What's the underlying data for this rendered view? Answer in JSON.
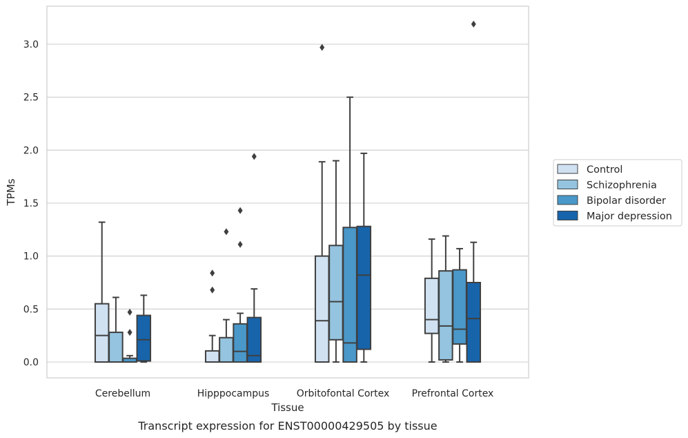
{
  "chart_data": {
    "type": "box",
    "title": "",
    "caption": "Transcript expression for ENST00000429505 by tissue",
    "xlabel": "Tissue",
    "ylabel": "TPMs",
    "ylim": [
      -0.15,
      3.38
    ],
    "yticks": [
      0.0,
      0.5,
      1.0,
      1.5,
      2.0,
      2.5,
      3.0
    ],
    "ytick_labels": [
      "0.0",
      "0.5",
      "1.0",
      "1.5",
      "2.0",
      "2.5",
      "3.0"
    ],
    "grid": "horizontal",
    "legend_position": "right",
    "categories": [
      "Cerebellum",
      "Hipppocampus",
      "Orbitofontal Cortex",
      "Prefrontal Cortex"
    ],
    "series": [
      {
        "name": "Control",
        "color": "#d0e1f2",
        "boxes": [
          {
            "whislo": 0.0,
            "q1": 0.0,
            "med": 0.25,
            "q3": 0.55,
            "whishi": 1.32,
            "fliers": []
          },
          {
            "whislo": 0.0,
            "q1": 0.0,
            "med": 0.0,
            "q3": 0.105,
            "whishi": 0.25,
            "fliers": [
              0.68,
              0.84
            ]
          },
          {
            "whislo": 0.0,
            "q1": 0.0,
            "med": 0.39,
            "q3": 1.0,
            "whishi": 1.89,
            "fliers": [
              2.97
            ]
          },
          {
            "whislo": 0.0,
            "q1": 0.27,
            "med": 0.4,
            "q3": 0.79,
            "whishi": 1.16,
            "fliers": []
          }
        ]
      },
      {
        "name": "Schizophrenia",
        "color": "#94c4df",
        "boxes": [
          {
            "whislo": 0.0,
            "q1": 0.0,
            "med": 0.0,
            "q3": 0.28,
            "whishi": 0.61,
            "fliers": []
          },
          {
            "whislo": 0.0,
            "q1": 0.0,
            "med": 0.0,
            "q3": 0.23,
            "whishi": 0.4,
            "fliers": [
              1.23
            ]
          },
          {
            "whislo": 0.0,
            "q1": 0.21,
            "med": 0.57,
            "q3": 1.1,
            "whishi": 1.9,
            "fliers": []
          },
          {
            "whislo": 0.0,
            "q1": 0.02,
            "med": 0.34,
            "q3": 0.86,
            "whishi": 1.19,
            "fliers": []
          }
        ]
      },
      {
        "name": "Bipolar disorder",
        "color": "#4a98c9",
        "boxes": [
          {
            "whislo": 0.0,
            "q1": 0.0,
            "med": 0.0,
            "q3": 0.035,
            "whishi": 0.06,
            "fliers": [
              0.28,
              0.47
            ]
          },
          {
            "whislo": 0.0,
            "q1": 0.0,
            "med": 0.1,
            "q3": 0.36,
            "whishi": 0.46,
            "fliers": [
              1.11,
              1.43
            ]
          },
          {
            "whislo": 0.0,
            "q1": 0.0,
            "med": 0.18,
            "q3": 1.27,
            "whishi": 2.5,
            "fliers": []
          },
          {
            "whislo": 0.0,
            "q1": 0.17,
            "med": 0.31,
            "q3": 0.87,
            "whishi": 1.07,
            "fliers": []
          }
        ]
      },
      {
        "name": "Major depression",
        "color": "#1764ab",
        "boxes": [
          {
            "whislo": 0.0,
            "q1": 0.01,
            "med": 0.21,
            "q3": 0.44,
            "whishi": 0.63,
            "fliers": []
          },
          {
            "whislo": 0.0,
            "q1": 0.0,
            "med": 0.06,
            "q3": 0.42,
            "whishi": 0.69,
            "fliers": [
              1.94
            ]
          },
          {
            "whislo": 0.0,
            "q1": 0.12,
            "med": 0.82,
            "q3": 1.28,
            "whishi": 1.97,
            "fliers": []
          },
          {
            "whislo": 0.0,
            "q1": 0.0,
            "med": 0.41,
            "q3": 0.75,
            "whishi": 1.13,
            "fliers": [
              3.19
            ]
          }
        ]
      }
    ]
  }
}
